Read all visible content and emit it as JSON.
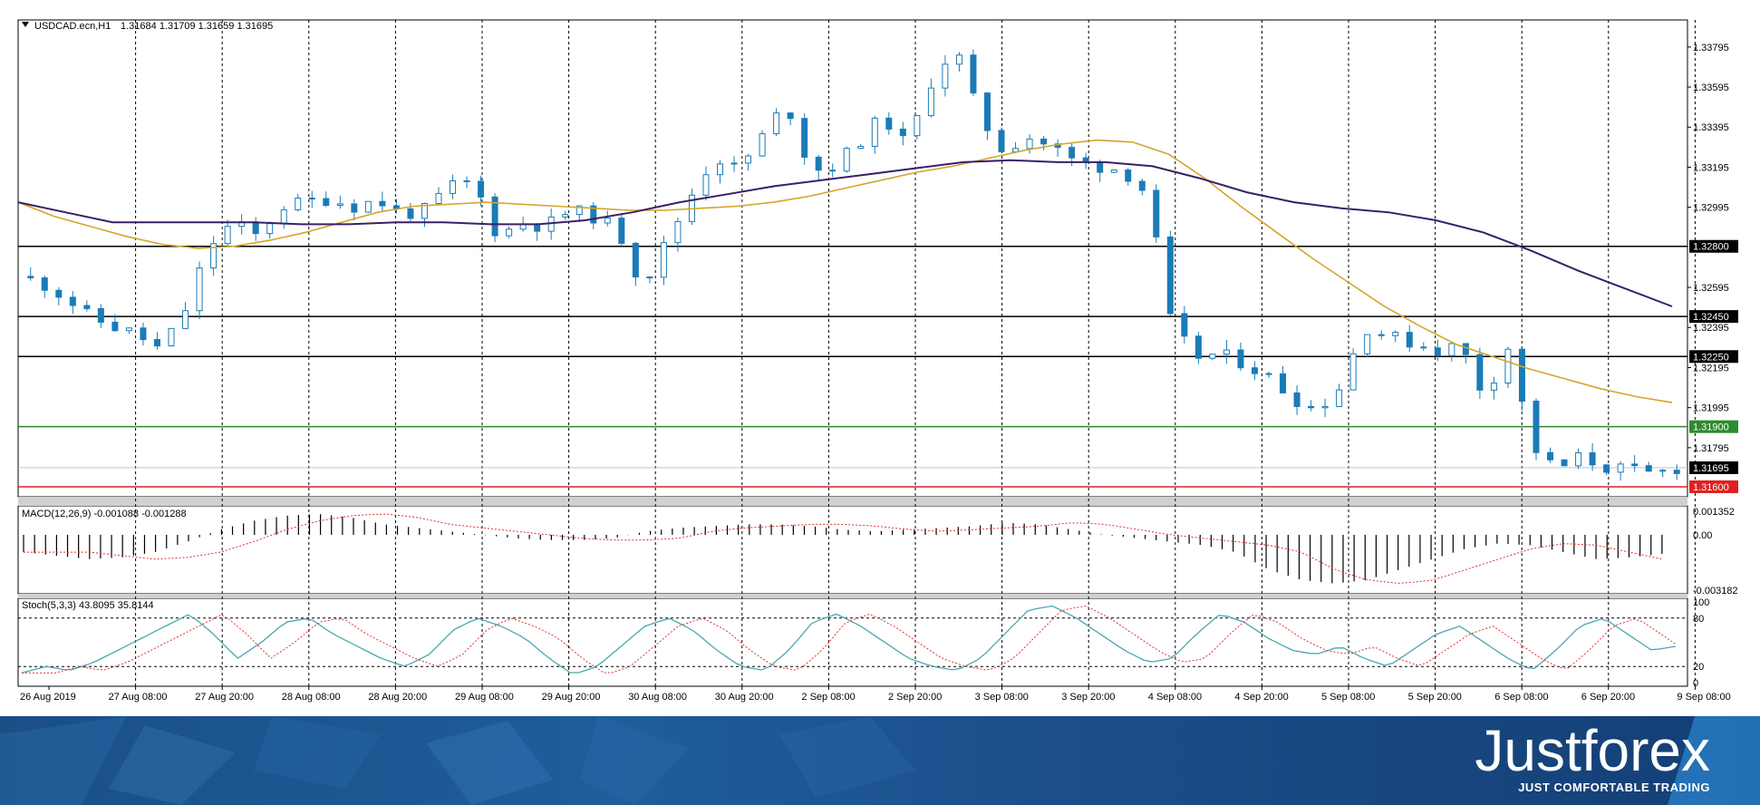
{
  "header": {
    "symbol": "USDCAD.ecn,H1",
    "ohlc": "1.31684 1.31709 1.31659 1.31695"
  },
  "colors": {
    "bull": "#ffffff",
    "bear": "#1a7bb8",
    "candle_outline": "#1a7bb8",
    "ma_fast": "#d4a52a",
    "ma_slow": "#3a1f66",
    "level_line": "#000000",
    "support_green": "#2e8b2e",
    "support_red": "#e02020",
    "stoch_main": "#4aa8b0",
    "stoch_signal": "#e03030"
  },
  "chart_data": [
    {
      "type": "candlestick",
      "title": "USDCAD.ecn,H1",
      "ylim": [
        1.3155,
        1.3393
      ],
      "price_axis_ticks": [
        "1.33795",
        "1.33595",
        "1.33395",
        "1.33195",
        "1.32995",
        "1.32595",
        "1.32395",
        "1.32195",
        "1.31995",
        "1.31795"
      ],
      "x_tick_labels": [
        "26 Aug 2019",
        "27 Aug 08:00",
        "27 Aug 20:00",
        "28 Aug 08:00",
        "28 Aug 20:00",
        "29 Aug 08:00",
        "29 Aug 20:00",
        "30 Aug 08:00",
        "30 Aug 20:00",
        "2 Sep 08:00",
        "2 Sep 20:00",
        "3 Sep 08:00",
        "3 Sep 20:00",
        "4 Sep 08:00",
        "4 Sep 20:00",
        "5 Sep 08:00",
        "5 Sep 20:00",
        "6 Sep 08:00",
        "6 Sep 20:00",
        "9 Sep 08:00"
      ],
      "close_path": [
        1.3265,
        1.3262,
        1.3255,
        1.3245,
        1.324,
        1.3236,
        1.3228,
        1.3248,
        1.328,
        1.3292,
        1.3285,
        1.33,
        1.3302,
        1.3304,
        1.33,
        1.3303,
        1.3296,
        1.3298,
        1.331,
        1.3312,
        1.3285,
        1.3292,
        1.329,
        1.3298,
        1.3295,
        1.3288,
        1.326,
        1.3282,
        1.3305,
        1.3325,
        1.3318,
        1.3335,
        1.3352,
        1.3318,
        1.332,
        1.3332,
        1.3345,
        1.333,
        1.3362,
        1.338,
        1.3345,
        1.3328,
        1.3335,
        1.333,
        1.3322,
        1.332,
        1.3318,
        1.3306,
        1.324,
        1.3225,
        1.3226,
        1.3222,
        1.3215,
        1.3205,
        1.3198,
        1.321,
        1.324,
        1.3235,
        1.3232,
        1.3228,
        1.3231,
        1.3205,
        1.323,
        1.318,
        1.3168,
        1.3175,
        1.317,
        1.3168,
        1.3166,
        1.31695
      ],
      "ma_fast": [
        1.3302,
        1.3295,
        1.329,
        1.3285,
        1.3281,
        1.3279,
        1.328,
        1.3283,
        1.3287,
        1.3292,
        1.3297,
        1.33,
        1.3301,
        1.3302,
        1.3301,
        1.33,
        1.3299,
        1.3298,
        1.3298,
        1.3299,
        1.33,
        1.3302,
        1.3305,
        1.3309,
        1.3313,
        1.3317,
        1.332,
        1.3324,
        1.3328,
        1.3331,
        1.3333,
        1.3332,
        1.3326,
        1.3314,
        1.33,
        1.3287,
        1.3274,
        1.3262,
        1.325,
        1.324,
        1.3231,
        1.3225,
        1.3219,
        1.3214,
        1.3209,
        1.3205,
        1.3202
      ],
      "ma_slow": [
        1.3302,
        1.3297,
        1.3292,
        1.3292,
        1.3292,
        1.3292,
        1.3291,
        1.3291,
        1.3292,
        1.3292,
        1.3291,
        1.3291,
        1.3293,
        1.3297,
        1.3302,
        1.3306,
        1.331,
        1.3313,
        1.3316,
        1.3319,
        1.3322,
        1.3323,
        1.3322,
        1.3322,
        1.332,
        1.3314,
        1.3307,
        1.3302,
        1.3299,
        1.3297,
        1.3293,
        1.3287,
        1.3278,
        1.3268,
        1.3259,
        1.325
      ]
    },
    {
      "type": "bar",
      "title": "MACD(12,26,9) -0.001088 -0.001288",
      "ylim": [
        -0.003182,
        0.001352
      ],
      "tick_labels": [
        "0.001352",
        "0.00",
        "-0.003182"
      ],
      "values_sampled": [
        -0.001,
        -0.0012,
        -0.0014,
        -0.0013,
        -0.001,
        -0.0004,
        0.0003,
        0.0008,
        0.0011,
        0.0012,
        0.001,
        0.0006,
        0.0004,
        0.0002,
        0.0,
        -0.0002,
        -0.0003,
        -0.0003,
        -0.0002,
        0.0002,
        0.0004,
        0.0005,
        0.0006,
        0.0006,
        0.0005,
        0.0003,
        0.0002,
        0.0003,
        0.0004,
        0.0005,
        0.0007,
        0.0006,
        0.0003,
        0.0,
        -0.0002,
        -0.0004,
        -0.0006,
        -0.001,
        -0.002,
        -0.0026,
        -0.0028,
        -0.0026,
        -0.002,
        -0.0014,
        -0.0008,
        -0.0005,
        -0.0006,
        -0.001,
        -0.0014,
        -0.0013,
        -0.0011
      ]
    },
    {
      "type": "line",
      "title": "Stoch(5,3,3) 43.8095 35.8144",
      "ylim": [
        0,
        100
      ],
      "tick_labels": [
        "100",
        "80",
        "20",
        "0"
      ],
      "series": [
        {
          "name": "Stoch main",
          "values": [
            12,
            20,
            15,
            25,
            40,
            55,
            70,
            85,
            60,
            30,
            50,
            75,
            80,
            60,
            45,
            30,
            20,
            35,
            65,
            80,
            70,
            55,
            30,
            10,
            20,
            45,
            70,
            80,
            65,
            40,
            20,
            15,
            40,
            75,
            85,
            70,
            50,
            30,
            20,
            15,
            30,
            60,
            90,
            95,
            80,
            60,
            40,
            25,
            30,
            60,
            85,
            75,
            55,
            40,
            35,
            45,
            30,
            20,
            40,
            60,
            70,
            50,
            30,
            15,
            40,
            70,
            80,
            60,
            40,
            45
          ]
        }
      ]
    }
  ],
  "levels": [
    {
      "label": "1.32800",
      "value": 1.328,
      "kind": "black"
    },
    {
      "label": "1.32450",
      "value": 1.3245,
      "kind": "black"
    },
    {
      "label": "1.32250",
      "value": 1.3225,
      "kind": "black"
    },
    {
      "label": "1.31900",
      "value": 1.319,
      "kind": "green"
    },
    {
      "label": "1.31695",
      "value": 1.31695,
      "kind": "current"
    },
    {
      "label": "1.31600",
      "value": 1.316,
      "kind": "red"
    }
  ],
  "brand": {
    "name": "Justforex",
    "tagline": "JUST COMFORTABLE TRADING"
  }
}
